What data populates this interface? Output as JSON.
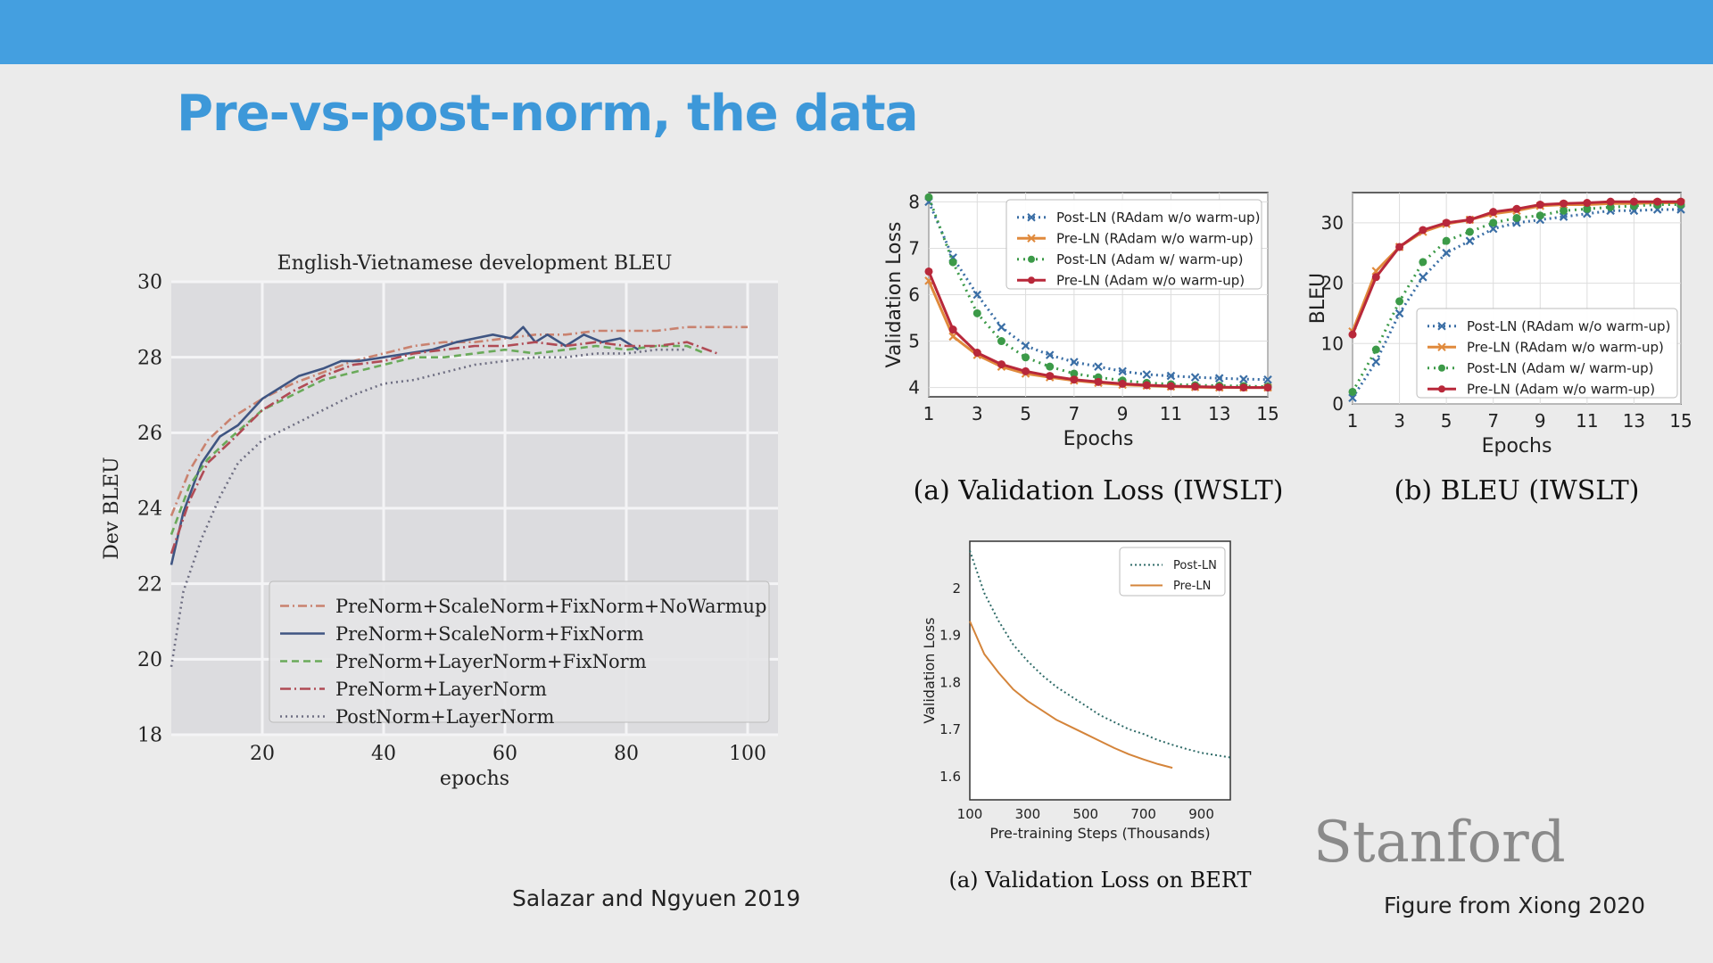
{
  "slide": {
    "title": "Pre-vs-post-norm, the data",
    "credit_left": "Salazar and Ngyuen 2019",
    "credit_right": "Figure from Xiong 2020",
    "logo_text": "Stanford"
  },
  "chart_data": [
    {
      "id": "envi",
      "type": "line",
      "title": "English-Vietnamese development BLEU",
      "xlabel": "epochs",
      "ylabel": "Dev BLEU",
      "xlim": [
        5,
        105
      ],
      "ylim": [
        18,
        30
      ],
      "xticks": [
        20,
        40,
        60,
        80,
        100
      ],
      "yticks": [
        18,
        20,
        22,
        24,
        26,
        28,
        30
      ],
      "grid": true,
      "legend": "lower-right",
      "series": [
        {
          "name": "PreNorm+ScaleNorm+FixNorm+NoWarmup",
          "color": "#c9826f",
          "dash": "10,4,2,4",
          "x": [
            5,
            8,
            11,
            15,
            20,
            25,
            30,
            35,
            40,
            45,
            50,
            55,
            60,
            65,
            70,
            75,
            80,
            85,
            90,
            95,
            100
          ],
          "y": [
            23.8,
            25.0,
            25.8,
            26.4,
            26.9,
            27.3,
            27.6,
            27.9,
            28.1,
            28.3,
            28.4,
            28.4,
            28.5,
            28.6,
            28.6,
            28.7,
            28.7,
            28.7,
            28.8,
            28.8,
            28.8
          ]
        },
        {
          "name": "PreNorm+ScaleNorm+FixNorm",
          "color": "#3f5582",
          "dash": "",
          "x": [
            5,
            7,
            10,
            13,
            16,
            20,
            23,
            26,
            30,
            33,
            36,
            40,
            44,
            48,
            52,
            55,
            58,
            61,
            63,
            65,
            67,
            70,
            73,
            76,
            79,
            82
          ],
          "y": [
            22.5,
            23.9,
            25.2,
            25.9,
            26.2,
            26.9,
            27.2,
            27.5,
            27.7,
            27.9,
            27.9,
            28.0,
            28.1,
            28.2,
            28.4,
            28.5,
            28.6,
            28.5,
            28.8,
            28.4,
            28.6,
            28.3,
            28.6,
            28.4,
            28.5,
            28.2
          ]
        },
        {
          "name": "PreNorm+LayerNorm+FixNorm",
          "color": "#6aaa5a",
          "dash": "8,5",
          "x": [
            5,
            8,
            11,
            15,
            20,
            25,
            30,
            35,
            40,
            45,
            50,
            55,
            60,
            65,
            70,
            75,
            80,
            85,
            90,
            93
          ],
          "y": [
            23.3,
            24.6,
            25.3,
            25.9,
            26.6,
            27.0,
            27.4,
            27.6,
            27.8,
            28.0,
            28.0,
            28.1,
            28.2,
            28.1,
            28.2,
            28.3,
            28.2,
            28.3,
            28.3,
            28.1
          ]
        },
        {
          "name": "PreNorm+LayerNorm",
          "color": "#b04b55",
          "dash": "12,4,2,4",
          "x": [
            5,
            8,
            11,
            15,
            20,
            25,
            30,
            35,
            40,
            45,
            50,
            55,
            60,
            65,
            70,
            75,
            80,
            85,
            90,
            95
          ],
          "y": [
            22.8,
            24.2,
            25.2,
            25.8,
            26.6,
            27.1,
            27.5,
            27.8,
            27.9,
            28.1,
            28.2,
            28.3,
            28.3,
            28.4,
            28.3,
            28.4,
            28.3,
            28.3,
            28.4,
            28.1
          ]
        },
        {
          "name": "PostNorm+LayerNorm",
          "color": "#6e6e82",
          "dash": "2,4",
          "x": [
            5,
            7,
            10,
            13,
            16,
            20,
            25,
            30,
            35,
            40,
            45,
            50,
            55,
            60,
            65,
            70,
            75,
            80,
            85,
            90
          ],
          "y": [
            19.8,
            21.8,
            23.2,
            24.3,
            25.2,
            25.8,
            26.2,
            26.6,
            27.0,
            27.3,
            27.4,
            27.6,
            27.8,
            27.9,
            28.0,
            28.0,
            28.1,
            28.1,
            28.2,
            28.2
          ]
        }
      ]
    },
    {
      "id": "iwslt_loss",
      "type": "line",
      "caption": "(a)  Validation Loss (IWSLT)",
      "xlabel": "Epochs",
      "ylabel": "Validation Loss",
      "xlim": [
        1,
        15
      ],
      "ylim": [
        3.8,
        8.2
      ],
      "xticks": [
        1,
        3,
        5,
        7,
        9,
        11,
        13,
        15
      ],
      "yticks": [
        4,
        5,
        6,
        7,
        8
      ],
      "grid": true,
      "legend": "top-right",
      "series": [
        {
          "name": "Post-LN (RAdam w/o warm-up)",
          "color": "#3a6ea5",
          "dash": "2,4",
          "marker": "x",
          "x": [
            1,
            2,
            3,
            4,
            5,
            6,
            7,
            8,
            9,
            10,
            11,
            12,
            13,
            14,
            15
          ],
          "y": [
            8.0,
            6.8,
            6.0,
            5.3,
            4.9,
            4.7,
            4.55,
            4.45,
            4.35,
            4.28,
            4.25,
            4.22,
            4.2,
            4.18,
            4.17
          ]
        },
        {
          "name": "Pre-LN (RAdam w/o warm-up)",
          "color": "#e08a3c",
          "dash": "",
          "marker": "x",
          "x": [
            1,
            2,
            3,
            4,
            5,
            6,
            7,
            8,
            9,
            10,
            11,
            12,
            13,
            14,
            15
          ],
          "y": [
            6.3,
            5.1,
            4.7,
            4.45,
            4.3,
            4.22,
            4.15,
            4.1,
            4.06,
            4.04,
            4.02,
            4.01,
            4.0,
            4.0,
            4.0
          ]
        },
        {
          "name": "Post-LN (Adam w/ warm-up)",
          "color": "#3c9a48",
          "dash": "2,5",
          "marker": "o",
          "x": [
            1,
            2,
            3,
            4,
            5,
            6,
            7,
            8,
            9,
            10,
            11,
            12,
            13,
            14,
            15
          ],
          "y": [
            8.1,
            6.7,
            5.6,
            5.0,
            4.65,
            4.45,
            4.3,
            4.22,
            4.15,
            4.1,
            4.07,
            4.05,
            4.04,
            4.03,
            4.02
          ]
        },
        {
          "name": "Pre-LN (Adam w/o warm-up)",
          "color": "#b8283a",
          "dash": "",
          "marker": "o",
          "x": [
            1,
            2,
            3,
            4,
            5,
            6,
            7,
            8,
            9,
            10,
            11,
            12,
            13,
            14,
            15
          ],
          "y": [
            6.5,
            5.25,
            4.75,
            4.5,
            4.35,
            4.25,
            4.17,
            4.12,
            4.08,
            4.05,
            4.03,
            4.02,
            4.01,
            4.0,
            4.0
          ]
        }
      ]
    },
    {
      "id": "iwslt_bleu",
      "type": "line",
      "caption": "(b)  BLEU (IWSLT)",
      "xlabel": "Epochs",
      "ylabel": "BLEU",
      "xlim": [
        1,
        15
      ],
      "ylim": [
        0,
        35
      ],
      "xticks": [
        1,
        3,
        5,
        7,
        9,
        11,
        13,
        15
      ],
      "yticks": [
        0,
        10,
        20,
        30
      ],
      "grid": true,
      "legend": "bottom-right",
      "series": [
        {
          "name": "Post-LN (RAdam w/o warm-up)",
          "color": "#3a6ea5",
          "dash": "2,4",
          "marker": "x",
          "x": [
            1,
            2,
            3,
            4,
            5,
            6,
            7,
            8,
            9,
            10,
            11,
            12,
            13,
            14,
            15
          ],
          "y": [
            1,
            7,
            15,
            21,
            25,
            27,
            29,
            30,
            30.5,
            31,
            31.5,
            32,
            32,
            32.2,
            32.2
          ]
        },
        {
          "name": "Pre-LN (RAdam w/o warm-up)",
          "color": "#e08a3c",
          "dash": "",
          "marker": "x",
          "x": [
            1,
            2,
            3,
            4,
            5,
            6,
            7,
            8,
            9,
            10,
            11,
            12,
            13,
            14,
            15
          ],
          "y": [
            12,
            22,
            26,
            28.5,
            29.8,
            30.5,
            31.5,
            32,
            32.8,
            33,
            33,
            33.2,
            33.2,
            33.3,
            33.3
          ]
        },
        {
          "name": "Post-LN (Adam w/ warm-up)",
          "color": "#3c9a48",
          "dash": "2,5",
          "marker": "o",
          "x": [
            1,
            2,
            3,
            4,
            5,
            6,
            7,
            8,
            9,
            10,
            11,
            12,
            13,
            14,
            15
          ],
          "y": [
            2,
            9,
            17,
            23.5,
            27,
            28.5,
            30,
            30.8,
            31.2,
            32,
            32.3,
            32.6,
            32.8,
            33,
            33
          ]
        },
        {
          "name": "Pre-LN (Adam w/o warm-up)",
          "color": "#b8283a",
          "dash": "",
          "marker": "o",
          "x": [
            1,
            2,
            3,
            4,
            5,
            6,
            7,
            8,
            9,
            10,
            11,
            12,
            13,
            14,
            15
          ],
          "y": [
            11.5,
            21,
            26,
            28.8,
            30,
            30.5,
            31.8,
            32.3,
            33,
            33.2,
            33.3,
            33.5,
            33.5,
            33.5,
            33.5
          ]
        }
      ]
    },
    {
      "id": "bert_loss",
      "type": "line",
      "caption": "(a)  Validation Loss on BERT",
      "xlabel": "Pre-training Steps (Thousands)",
      "ylabel": "Validation Loss",
      "xlim": [
        100,
        1000
      ],
      "ylim": [
        1.55,
        2.1
      ],
      "xticks": [
        100,
        300,
        500,
        700,
        900
      ],
      "yticks": [
        1.6,
        1.7,
        1.8,
        1.9,
        2.0
      ],
      "grid": false,
      "legend": "top-right",
      "series": [
        {
          "name": "Post-LN",
          "color": "#2f6b68",
          "dash": "2,3",
          "x": [
            100,
            150,
            200,
            250,
            300,
            350,
            400,
            450,
            500,
            550,
            600,
            650,
            700,
            750,
            800,
            850,
            900,
            950,
            1000
          ],
          "y": [
            2.08,
            1.99,
            1.93,
            1.88,
            1.845,
            1.815,
            1.79,
            1.77,
            1.75,
            1.73,
            1.715,
            1.7,
            1.69,
            1.677,
            1.667,
            1.658,
            1.65,
            1.645,
            1.64
          ]
        },
        {
          "name": "Pre-LN",
          "color": "#d4843a",
          "dash": "",
          "x": [
            100,
            150,
            200,
            250,
            300,
            350,
            400,
            450,
            500,
            550,
            600,
            650,
            700,
            750,
            800
          ],
          "y": [
            1.93,
            1.86,
            1.82,
            1.785,
            1.76,
            1.74,
            1.72,
            1.705,
            1.69,
            1.675,
            1.66,
            1.647,
            1.636,
            1.626,
            1.618
          ]
        }
      ]
    }
  ]
}
